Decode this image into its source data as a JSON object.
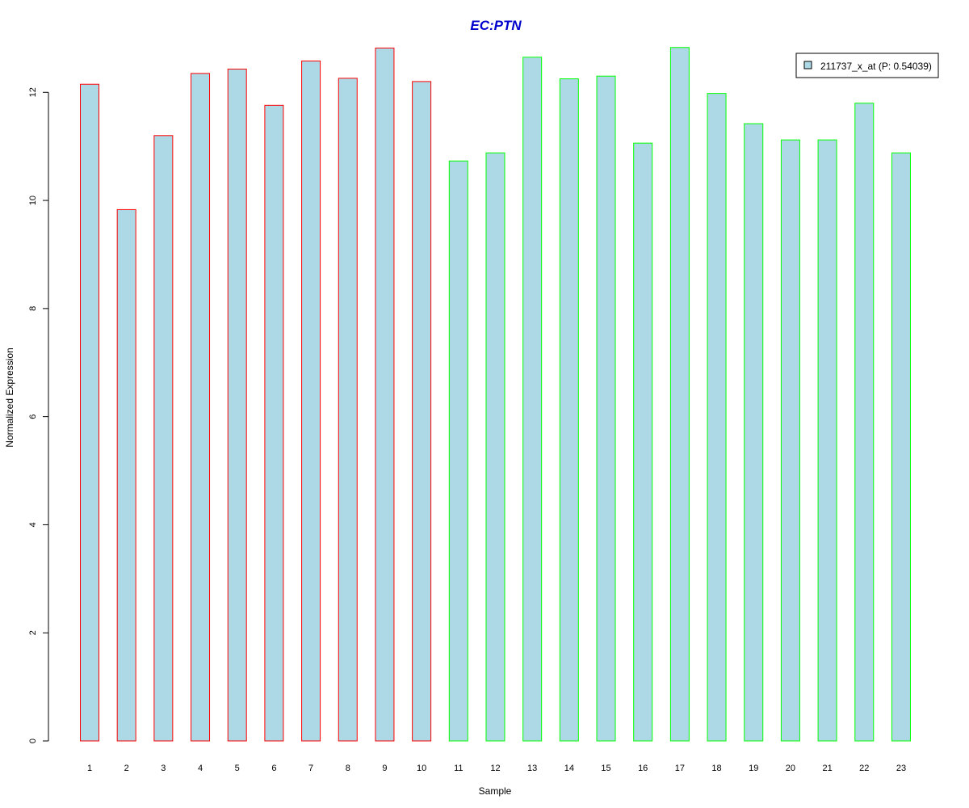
{
  "chart_data": {
    "type": "bar",
    "title": "EC:PTN",
    "xlabel": "Sample",
    "ylabel": "Normalized Expression",
    "categories": [
      "1",
      "2",
      "3",
      "4",
      "5",
      "6",
      "7",
      "8",
      "9",
      "10",
      "11",
      "12",
      "13",
      "14",
      "15",
      "16",
      "17",
      "18",
      "19",
      "20",
      "21",
      "22",
      "23"
    ],
    "series": [
      {
        "name": "211737_x_at (P: 0.54039)",
        "values": [
          12.15,
          9.83,
          11.2,
          12.35,
          12.43,
          11.76,
          12.58,
          12.26,
          12.82,
          12.2,
          10.73,
          10.88,
          12.65,
          12.25,
          12.3,
          11.06,
          12.83,
          11.98,
          11.42,
          11.12,
          11.12,
          11.8,
          10.88
        ]
      }
    ],
    "bar_group": [
      "a",
      "a",
      "a",
      "a",
      "a",
      "a",
      "a",
      "a",
      "a",
      "a",
      "b",
      "b",
      "b",
      "b",
      "b",
      "b",
      "b",
      "b",
      "b",
      "b",
      "b",
      "b",
      "b"
    ],
    "ylim": [
      0,
      13.2
    ],
    "yticks": [
      0,
      2,
      4,
      6,
      8,
      10,
      12
    ],
    "grid": false,
    "legend_position": "top-right",
    "colors": {
      "bar_fill": "#ADD8E6",
      "group_a_border": "#FF0000",
      "group_b_border": "#00FF00",
      "title": "#0000CD"
    }
  }
}
